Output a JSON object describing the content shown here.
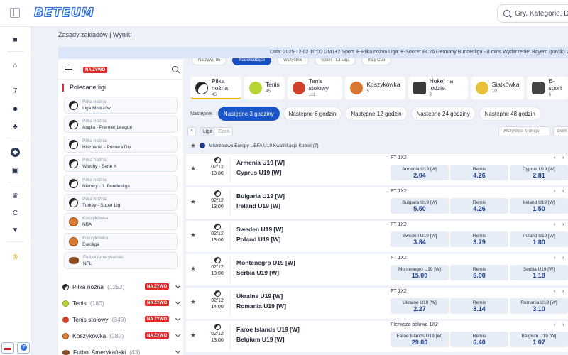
{
  "header": {
    "logo": "BETEUM",
    "search_placeholder": "Gry, Kategorie, Do"
  },
  "breadcrumb": {
    "rules": "Zasady zakładów",
    "sep": "|",
    "results": "Wyniki"
  },
  "info_bar": "Data: 2025-12-02 10:00 GMT+2 Sport: E-Piłka nożna Liga: E-Soccer FC26 Germany Bundesliga - 8 mins Wydarzenie: Bayern (pavjik) vs RB Le",
  "sidebar": {
    "live_badge": "NA ŻYWO",
    "featured_title": "Polecane ligi",
    "leagues": [
      {
        "sport": "Piłka nożna",
        "name": "Liga Mistrzów",
        "icon": "soccer-ball-icon"
      },
      {
        "sport": "Piłka nożna",
        "name": "Anglia - Premier League",
        "icon": "soccer-ball-icon"
      },
      {
        "sport": "Piłka nożna",
        "name": "Hiszpania - Primera Div.",
        "icon": "soccer-ball-icon"
      },
      {
        "sport": "Piłka nożna",
        "name": "Włochy - Serie A",
        "icon": "soccer-ball-icon"
      },
      {
        "sport": "Piłka nożna",
        "name": "Niemcy - 1. Bundesliga",
        "icon": "soccer-ball-icon"
      },
      {
        "sport": "Piłka nożna",
        "name": "Turkey - Super Lig",
        "icon": "soccer-ball-icon"
      },
      {
        "sport": "Koszykówka",
        "name": "NBA",
        "icon": "basketball-icon"
      },
      {
        "sport": "Koszykówka",
        "name": "Euroliga",
        "icon": "basketball-icon"
      },
      {
        "sport": "Futbol Amerykański",
        "name": "NFL",
        "icon": "american-football-icon"
      }
    ],
    "sports": [
      {
        "name": "Piłka nożna",
        "count": "(1252)",
        "live": "NA ŻYWO"
      },
      {
        "name": "Tenis",
        "count": "(180)",
        "live": "NA ŻYWO"
      },
      {
        "name": "Tenis stołowy",
        "count": "(349)",
        "live": "NA ŻYWO"
      },
      {
        "name": "Koszykówka",
        "count": "(289)",
        "live": "NA ŻYWO"
      },
      {
        "name": "Futbol Amerykański",
        "count": "(43)",
        "live": ""
      }
    ]
  },
  "top_pills": [
    "Na żywo 95",
    "Nadchodzące",
    "Wszystkie",
    "Spain - La Liga",
    "Italy Cup"
  ],
  "sport_tabs": [
    {
      "name": "Piłka nożna",
      "count": "45",
      "icon": "soccer-ball-icon",
      "color": "#ffffff"
    },
    {
      "name": "Tenis",
      "count": "45",
      "icon": "tennis-ball-icon",
      "color": "#b7d534"
    },
    {
      "name": "Tenis stołowy",
      "count": "111",
      "icon": "table-tennis-icon",
      "color": "#d0402a"
    },
    {
      "name": "Koszykówka",
      "count": "5",
      "icon": "basketball-icon",
      "color": "#d97830"
    },
    {
      "name": "Hokej na lodzie",
      "count": "2",
      "icon": "ice-hockey-icon",
      "color": "#3a3a3a"
    },
    {
      "name": "Siatkówka",
      "count": "10",
      "icon": "volleyball-icon",
      "color": "#e8c238"
    },
    {
      "name": "E-sport",
      "count": "6",
      "icon": "gamepad-icon",
      "color": "#444444"
    }
  ],
  "next_label": "Następne:",
  "next_filters": [
    "Następne 3 godziny",
    "Następne 6 godzin",
    "Następne 12 godzin",
    "Następne 24 godziny",
    "Następne 48 godzin"
  ],
  "filters": {
    "collapse": "^",
    "league": "Liga",
    "time": "Czas",
    "all_functions": "Wszystkie funkcje",
    "extra": "Dom"
  },
  "competition": "Mistrzostwa Europy UEFA U19 Kwalifikacje Kobiet (7)",
  "events": [
    {
      "date": "02/12",
      "time": "13:00",
      "home": "Armenia U19 [W]",
      "away": "Cyprus U19 [W]",
      "market": "FT 1X2",
      "odds": [
        {
          "name": "Armenia U19 [W]",
          "value": "2.04"
        },
        {
          "name": "Remis",
          "value": "4.26"
        },
        {
          "name": "Cyprus U19 [W]",
          "value": "2.81"
        }
      ]
    },
    {
      "date": "02/12",
      "time": "13:00",
      "home": "Bulgaria U19 [W]",
      "away": "Ireland U19 [W]",
      "market": "FT 1X2",
      "odds": [
        {
          "name": "Bulgaria U19 [W]",
          "value": "5.50"
        },
        {
          "name": "Remis",
          "value": "4.26"
        },
        {
          "name": "Ireland U19 [W]",
          "value": "1.50"
        }
      ]
    },
    {
      "date": "02/12",
      "time": "13:00",
      "home": "Sweden U19 [W]",
      "away": "Poland U19 [W]",
      "market": "FT 1X2",
      "odds": [
        {
          "name": "Sweden U19 [W]",
          "value": "3.84"
        },
        {
          "name": "Remis",
          "value": "3.79"
        },
        {
          "name": "Poland U19 [W]",
          "value": "1.80"
        }
      ]
    },
    {
      "date": "02/12",
      "time": "13:00",
      "home": "Montenegro U19 [W]",
      "away": "Serbia U19 [W]",
      "market": "FT 1X2",
      "odds": [
        {
          "name": "Montenegro U19 [W]",
          "value": "15.00"
        },
        {
          "name": "Remis",
          "value": "6.00"
        },
        {
          "name": "Serbia U19 [W]",
          "value": "1.18"
        }
      ]
    },
    {
      "date": "02/12",
      "time": "14:00",
      "home": "Ukraine U19 [W]",
      "away": "Romania U19 [W]",
      "market": "FT 1X2",
      "odds": [
        {
          "name": "Ukraine U19 [W]",
          "value": "2.27"
        },
        {
          "name": "Remis",
          "value": "3.14"
        },
        {
          "name": "Romania U19 [W]",
          "value": "3.10"
        }
      ]
    },
    {
      "date": "02/12",
      "time": "13:00",
      "home": "Faroe Islands U19 [W]",
      "away": "Belgium U19 [W]",
      "market": "Pierwsza połowa 1X2",
      "odds": [
        {
          "name": "Faroe Islands U19 [W]",
          "value": "29.00"
        },
        {
          "name": "Remis",
          "value": "6.40"
        },
        {
          "name": "Belgium U19 [W]",
          "value": "1.07"
        }
      ]
    }
  ]
}
